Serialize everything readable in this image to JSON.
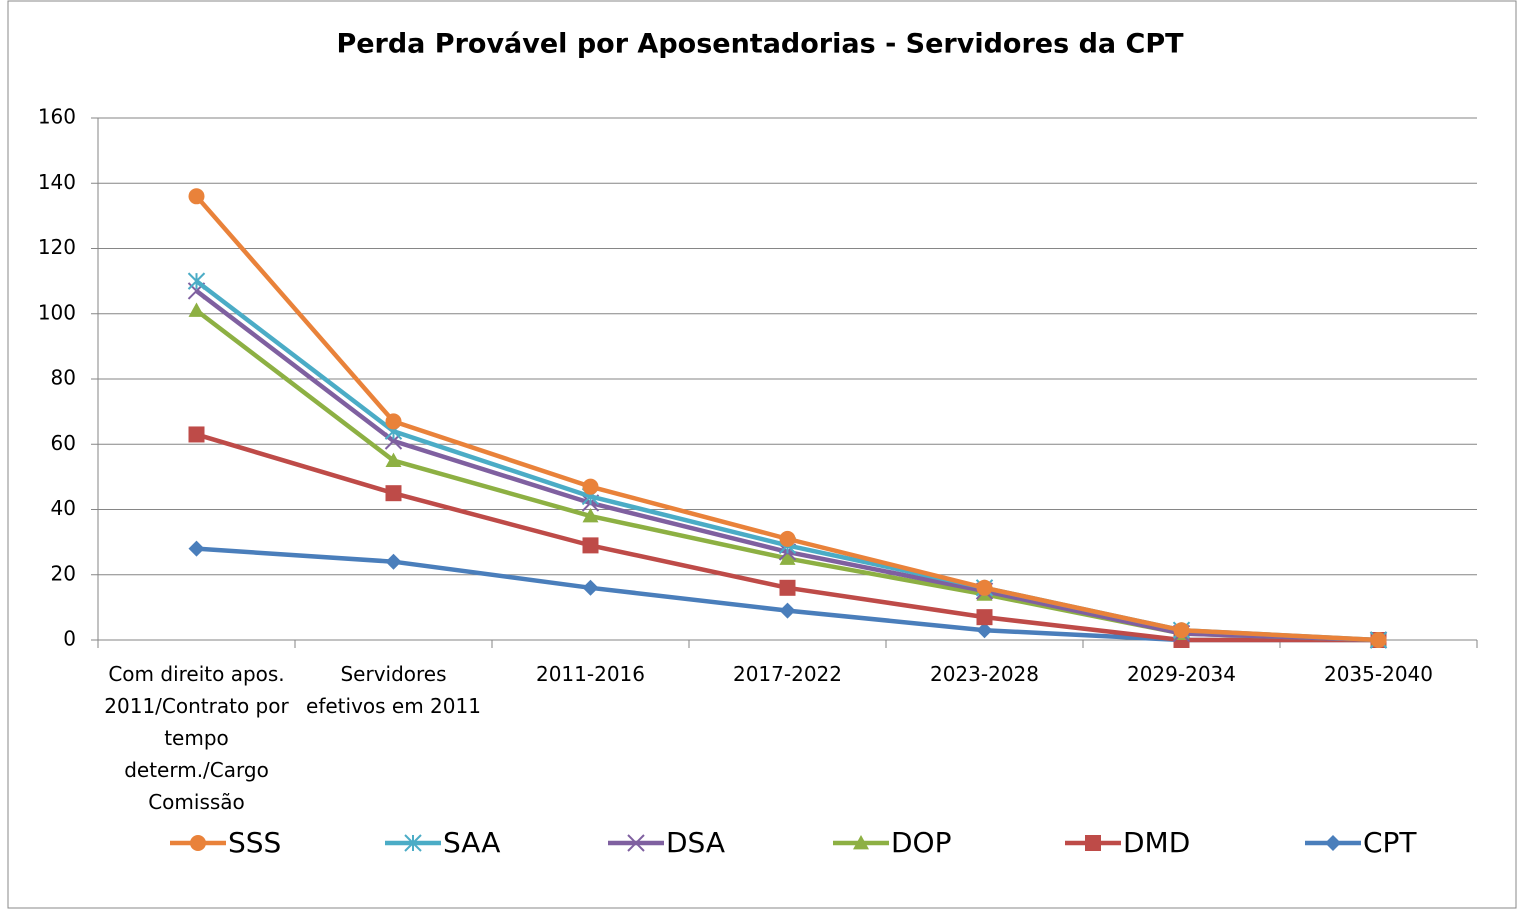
{
  "chart_data": {
    "type": "line",
    "title": "Perda Provável por Aposentadorias - Servidores da CPT",
    "categories": [
      "Com direito apos. 2011/Contrato por tempo determ./Cargo Comissão",
      "Servidores efetivos em 2011",
      "2011-2016",
      "2017-2022",
      "2023-2028",
      "2029-2034",
      "2035-2040"
    ],
    "series": [
      {
        "name": "SSS",
        "color": "#e9823a",
        "marker": "circle",
        "values": [
          136,
          67,
          47,
          31,
          16,
          3,
          0
        ]
      },
      {
        "name": "SAA",
        "color": "#4bacc6",
        "marker": "star",
        "values": [
          110,
          64,
          44,
          29,
          16,
          3,
          0
        ]
      },
      {
        "name": "DSA",
        "color": "#7f60a0",
        "marker": "x",
        "values": [
          107,
          61,
          42,
          27,
          15,
          2,
          0
        ]
      },
      {
        "name": "DOP",
        "color": "#8db043",
        "marker": "triangle",
        "values": [
          101,
          55,
          38,
          25,
          14,
          2,
          0
        ]
      },
      {
        "name": "DMD",
        "color": "#be4b48",
        "marker": "square",
        "values": [
          63,
          45,
          29,
          16,
          7,
          0,
          0
        ]
      },
      {
        "name": "CPT",
        "color": "#4a7ebb",
        "marker": "diamond",
        "values": [
          28,
          24,
          16,
          9,
          3,
          0,
          0
        ]
      }
    ],
    "ylim": [
      0,
      160
    ],
    "yticks": [
      0,
      20,
      40,
      60,
      80,
      100,
      120,
      140,
      160
    ],
    "grid": true,
    "legend": "bottom"
  }
}
